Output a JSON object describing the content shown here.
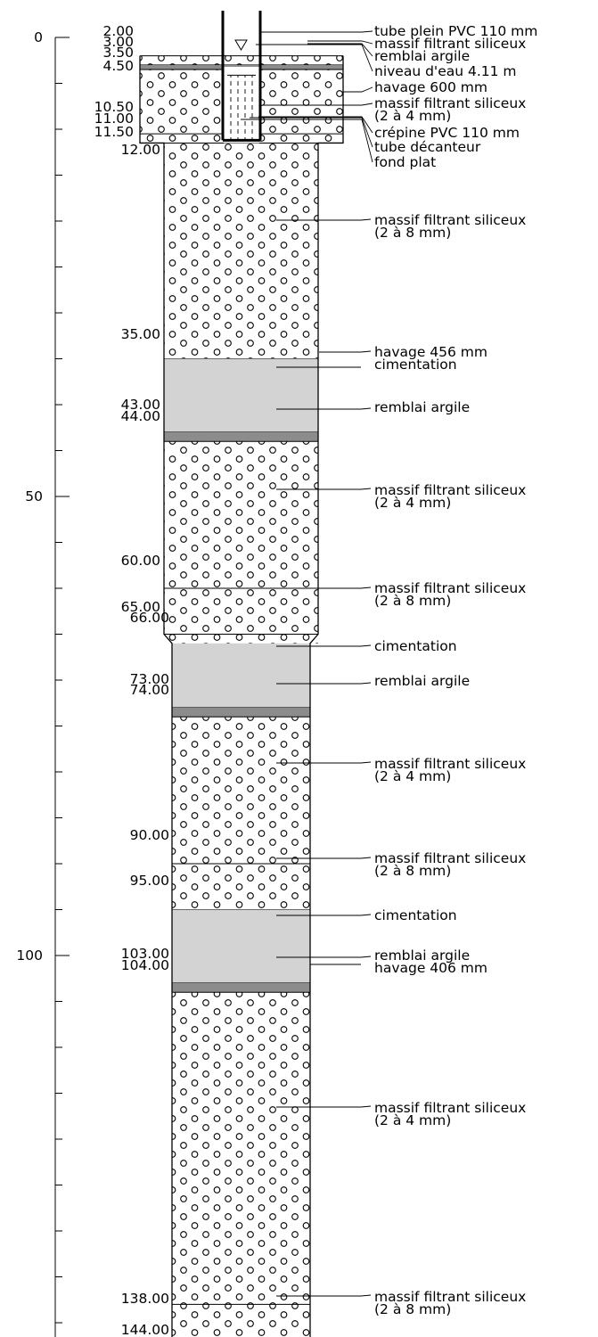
{
  "axis": {
    "unit": "m",
    "min": 0,
    "max": 144,
    "major_step": 50,
    "minor_step": 5,
    "labels": [
      "0",
      "50",
      "100"
    ]
  },
  "depth_labels": [
    "2.00",
    "3.00",
    "3.50",
    "4.50",
    "10.50",
    "11.00",
    "11.50",
    "12.00",
    "35.00",
    "43.00",
    "44.00",
    "60.00",
    "65.00",
    "66.00",
    "73.00",
    "74.00",
    "90.00",
    "95.00",
    "103.00",
    "104.00",
    "138.00",
    "144.00"
  ],
  "layers": [
    {
      "from": 2.0,
      "to": 3.0,
      "material": "gravel"
    },
    {
      "from": 3.0,
      "to": 3.5,
      "material": "clay"
    },
    {
      "from": 3.5,
      "to": 10.5,
      "material": "gravel"
    },
    {
      "from": 10.5,
      "to": 11.5,
      "material": "gravel"
    },
    {
      "from": 11.5,
      "to": 35.0,
      "material": "gravel"
    },
    {
      "from": 35.0,
      "to": 43.0,
      "material": "cement"
    },
    {
      "from": 43.0,
      "to": 44.0,
      "material": "clay"
    },
    {
      "from": 44.0,
      "to": 60.0,
      "material": "gravel"
    },
    {
      "from": 60.0,
      "to": 65.0,
      "material": "gravel"
    },
    {
      "from": 66.0,
      "to": 73.0,
      "material": "cement"
    },
    {
      "from": 73.0,
      "to": 74.0,
      "material": "clay"
    },
    {
      "from": 74.0,
      "to": 90.0,
      "material": "gravel"
    },
    {
      "from": 90.0,
      "to": 95.0,
      "material": "gravel"
    },
    {
      "from": 95.0,
      "to": 103.0,
      "material": "cement"
    },
    {
      "from": 103.0,
      "to": 104.0,
      "material": "clay"
    },
    {
      "from": 104.0,
      "to": 138.0,
      "material": "gravel"
    },
    {
      "from": 138.0,
      "to": 144.0,
      "material": "gravel"
    }
  ],
  "annotations_top": [
    "tube plein PVC 110 mm",
    "massif filtrant siliceux",
    "remblai argile",
    "niveau d'eau 4.11 m",
    "havage 600 mm",
    "massif filtrant siliceux",
    "(2 à 4 mm)",
    "crépine PVC 110 mm",
    "tube décanteur",
    "fond plat"
  ],
  "annotations": [
    [
      "massif filtrant siliceux",
      "(2 à 8 mm)"
    ],
    [
      "havage 456 mm",
      "cimentation"
    ],
    [
      "remblai argile"
    ],
    [
      "massif filtrant siliceux",
      "(2 à 4 mm)"
    ],
    [
      "massif filtrant siliceux",
      "(2 à 8 mm)"
    ],
    [
      "cimentation"
    ],
    [
      "remblai argile"
    ],
    [
      "massif filtrant siliceux",
      "(2 à 4 mm)"
    ],
    [
      "massif filtrant siliceux",
      "(2 à 8 mm)"
    ],
    [
      "cimentation"
    ],
    [
      "remblai argile",
      "havage 406 mm"
    ],
    [
      "massif filtrant siliceux",
      "(2 à 4 mm)"
    ],
    [
      "massif filtrant siliceux",
      "(2 à 8 mm)"
    ]
  ],
  "colors": {
    "cement": "#d3d3d3",
    "clay": "#8c8c8c",
    "gravel_bg": "#ffffff",
    "line": "#000000"
  }
}
